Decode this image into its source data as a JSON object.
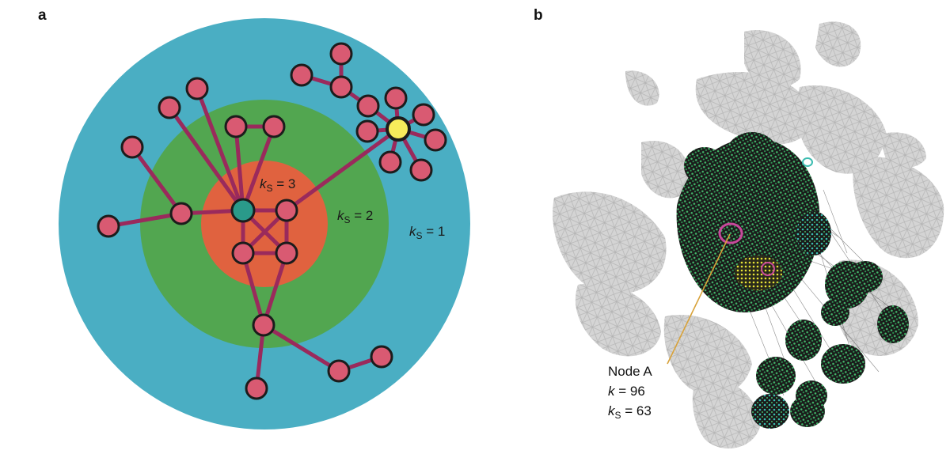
{
  "panel_a": {
    "letter": "a",
    "shell_colors": {
      "outer": "#4aaec3",
      "middle": "#52a650",
      "inner": "#e0623f"
    },
    "node_colors": {
      "regular": "#d95a72",
      "core": "#2a9a8a",
      "highlight": "#f7ec5b",
      "edge": "#9a2a5c"
    },
    "labels": {
      "ks3": {
        "var": "k",
        "sub": "S",
        "rest": " = 3"
      },
      "ks2": {
        "var": "k",
        "sub": "S",
        "rest": " = 2"
      },
      "ks1": {
        "var": "k",
        "sub": "S",
        "rest": " = 1"
      }
    }
  },
  "panel_b": {
    "letter": "b",
    "node_annotation": {
      "name": "Node A",
      "k_var": "k",
      "k_rest": " = 96",
      "ks_var": "k",
      "ks_sub": "S",
      "ks_rest": " = 63"
    },
    "colors": {
      "periphery": "#b9b9b9",
      "core_fill": "#1d1d1d",
      "core_nodes": "#3fb56a",
      "cyan": "#3bbcb0",
      "yellow": "#e6e436",
      "magenta": "#c8489b",
      "pointer": "#d8a23a"
    }
  }
}
